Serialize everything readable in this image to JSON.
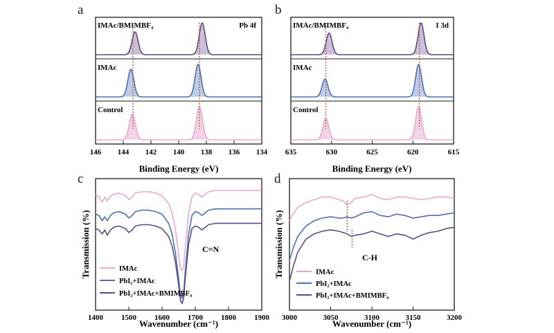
{
  "colors": {
    "pink": "#e8a8cf",
    "pink_fill": "#f3d3e6",
    "blue": "#4a6fb5",
    "blue_fill": "#bccbe8",
    "purple": "#5c4a86",
    "purple_fill": "#c9c0dc",
    "marker": "#c0522a",
    "axis": "#1a1a1a"
  },
  "chart_data": [
    {
      "id": "a",
      "type": "line",
      "panel_letter": "a",
      "title": "Pb 4f",
      "xlabel": "Binding Energy (eV)",
      "xlim": [
        146,
        134
      ],
      "xticks": [
        "146",
        "144",
        "142",
        "140",
        "138",
        "136",
        "134"
      ],
      "xtick_values": [
        146,
        144,
        142,
        140,
        138,
        136,
        134
      ],
      "marker_lines_x": [
        143.3,
        138.5
      ],
      "series": [
        {
          "name": "IMAc/BMIMBF4",
          "label": "IMAc/BMIMBF₄",
          "color": "purple",
          "peaks": [
            {
              "center": 143.15,
              "height": 0.72
            },
            {
              "center": 138.3,
              "height": 1.0
            }
          ]
        },
        {
          "name": "IMAc",
          "label": "IMAc",
          "color": "blue",
          "peaks": [
            {
              "center": 143.45,
              "height": 0.85
            },
            {
              "center": 138.6,
              "height": 1.0
            }
          ]
        },
        {
          "name": "Control",
          "label": "Control",
          "color": "pink",
          "peaks": [
            {
              "center": 143.35,
              "height": 0.78
            },
            {
              "center": 138.5,
              "height": 1.0
            }
          ]
        }
      ]
    },
    {
      "id": "b",
      "type": "line",
      "panel_letter": "b",
      "title": "I 3d",
      "xlabel": "Binding Energy (eV)",
      "xlim": [
        635,
        615
      ],
      "xticks": [
        "635",
        "630",
        "625",
        "620",
        "615"
      ],
      "xtick_values": [
        635,
        630,
        625,
        620,
        615
      ],
      "marker_lines_x": [
        630.7,
        619.2
      ],
      "series": [
        {
          "name": "IMAc/BMIMBF4",
          "label": "IMAc/BMIMBF₄",
          "color": "purple",
          "peaks": [
            {
              "center": 630.3,
              "height": 0.68
            },
            {
              "center": 619.0,
              "height": 1.0
            }
          ]
        },
        {
          "name": "IMAc",
          "label": "IMAc",
          "color": "blue",
          "peaks": [
            {
              "center": 630.8,
              "height": 0.55
            },
            {
              "center": 619.3,
              "height": 1.0
            }
          ]
        },
        {
          "name": "Control",
          "label": "Control",
          "color": "pink",
          "peaks": [
            {
              "center": 630.7,
              "height": 0.65
            },
            {
              "center": 619.3,
              "height": 1.0
            }
          ]
        }
      ]
    },
    {
      "id": "c",
      "type": "line",
      "panel_letter": "c",
      "xlabel": "Wavenumber (cm⁻¹)",
      "ylabel": "Transmission (%)",
      "xlim": [
        1400,
        1900
      ],
      "xticks": [
        "1400",
        "1500",
        "1600",
        "1700",
        "1800",
        "1900"
      ],
      "xtick_values": [
        1400,
        1500,
        1600,
        1700,
        1800,
        1900
      ],
      "annotation": "C=N",
      "legend": [
        "IMAc",
        "PbI₂+IMAc",
        "PbI₂+IMAc+BMIMBF₄"
      ],
      "series": [
        {
          "name": "IMAc",
          "color": "pink",
          "x": [
            1400,
            1410,
            1420,
            1428,
            1435,
            1445,
            1455,
            1470,
            1490,
            1500,
            1510,
            1520,
            1540,
            1560,
            1580,
            1600,
            1620,
            1630,
            1640,
            1650,
            1655,
            1660,
            1665,
            1670,
            1680,
            1690,
            1700,
            1710,
            1720,
            1740,
            1760,
            1800,
            1850,
            1900
          ],
          "y": [
            88,
            86,
            82,
            86,
            83,
            87,
            88,
            89,
            87,
            84,
            86,
            89,
            90,
            90,
            89,
            87,
            81,
            74,
            62,
            42,
            32,
            30,
            33,
            48,
            74,
            86,
            89,
            88,
            86,
            90,
            91,
            91,
            91,
            91
          ]
        },
        {
          "name": "PbI2+IMAc",
          "label": "PbI₂+IMAc",
          "color": "blue",
          "x": [
            1400,
            1410,
            1420,
            1428,
            1435,
            1445,
            1455,
            1470,
            1490,
            1500,
            1510,
            1520,
            1540,
            1560,
            1580,
            1600,
            1620,
            1630,
            1640,
            1650,
            1655,
            1660,
            1665,
            1670,
            1680,
            1690,
            1700,
            1710,
            1720,
            1740,
            1760,
            1800,
            1850,
            1900
          ],
          "y": [
            73,
            72,
            68,
            71,
            68,
            72,
            74,
            75,
            73,
            70,
            72,
            75,
            76,
            76,
            75,
            73,
            66,
            58,
            44,
            24,
            12,
            9,
            13,
            30,
            58,
            72,
            75,
            74,
            72,
            76,
            77,
            77,
            77,
            77
          ]
        },
        {
          "name": "PbI2+IMAc+BMIMBF4",
          "label": "PbI₂+IMAc+BMIMBF₄",
          "color": "purple",
          "x": [
            1400,
            1410,
            1420,
            1428,
            1435,
            1445,
            1455,
            1470,
            1490,
            1500,
            1510,
            1520,
            1540,
            1560,
            1580,
            1600,
            1620,
            1630,
            1640,
            1650,
            1655,
            1660,
            1665,
            1670,
            1680,
            1690,
            1700,
            1710,
            1720,
            1740,
            1760,
            1800,
            1850,
            1900
          ],
          "y": [
            62,
            61,
            58,
            61,
            57,
            61,
            63,
            64,
            62,
            59,
            61,
            64,
            65,
            65,
            64,
            62,
            56,
            49,
            37,
            19,
            8,
            5,
            9,
            25,
            50,
            62,
            64,
            63,
            61,
            65,
            66,
            66,
            66,
            66
          ]
        }
      ]
    },
    {
      "id": "d",
      "type": "line",
      "panel_letter": "d",
      "xlabel": "Wavenumber (cm⁻¹)",
      "ylabel": "Transmission (%)",
      "xlim": [
        3000,
        3200
      ],
      "xticks": [
        "3000",
        "3050",
        "3100",
        "3150",
        "3200"
      ],
      "xtick_values": [
        3000,
        3050,
        3100,
        3150,
        3200
      ],
      "annotation": "C-H",
      "marker_lines_x": [
        3070,
        3076
      ],
      "legend": [
        "IMAc",
        "PbI₂+IMAc",
        "PbI₂+IMAc+BMIMBF₄"
      ],
      "series": [
        {
          "name": "IMAc",
          "color": "pink",
          "x": [
            3000,
            3005,
            3010,
            3020,
            3030,
            3040,
            3050,
            3060,
            3065,
            3070,
            3075,
            3080,
            3090,
            3100,
            3110,
            3120,
            3130,
            3140,
            3150,
            3160,
            3170,
            3180,
            3190,
            3200
          ],
          "y": [
            68,
            74,
            78,
            82,
            84,
            86,
            86,
            84,
            83,
            80,
            82,
            85,
            86,
            88,
            85,
            84,
            86,
            86,
            85,
            84,
            85,
            86,
            86,
            85
          ]
        },
        {
          "name": "PbI2+IMAc",
          "label": "PbI₂+IMAc",
          "color": "blue",
          "x": [
            3000,
            3005,
            3010,
            3020,
            3030,
            3040,
            3050,
            3060,
            3065,
            3070,
            3075,
            3080,
            3090,
            3100,
            3110,
            3120,
            3130,
            3140,
            3150,
            3160,
            3170,
            3180,
            3190,
            3200
          ],
          "y": [
            38,
            48,
            56,
            64,
            68,
            70,
            71,
            70,
            70,
            71,
            70,
            71,
            74,
            75,
            72,
            71,
            73,
            72,
            70,
            71,
            72,
            72,
            73,
            74
          ]
        },
        {
          "name": "PbI2+IMAc+BMIMBF4",
          "label": "PbI₂+IMAc+BMIMBF₄",
          "color": "purple",
          "x": [
            3000,
            3005,
            3010,
            3020,
            3030,
            3040,
            3050,
            3060,
            3065,
            3070,
            3075,
            3080,
            3090,
            3100,
            3110,
            3120,
            3130,
            3140,
            3150,
            3160,
            3170,
            3180,
            3190,
            3200
          ],
          "y": [
            22,
            34,
            44,
            54,
            58,
            60,
            61,
            60,
            59,
            58,
            56,
            57,
            58,
            60,
            58,
            56,
            58,
            57,
            54,
            57,
            59,
            60,
            62,
            63
          ]
        }
      ]
    }
  ]
}
